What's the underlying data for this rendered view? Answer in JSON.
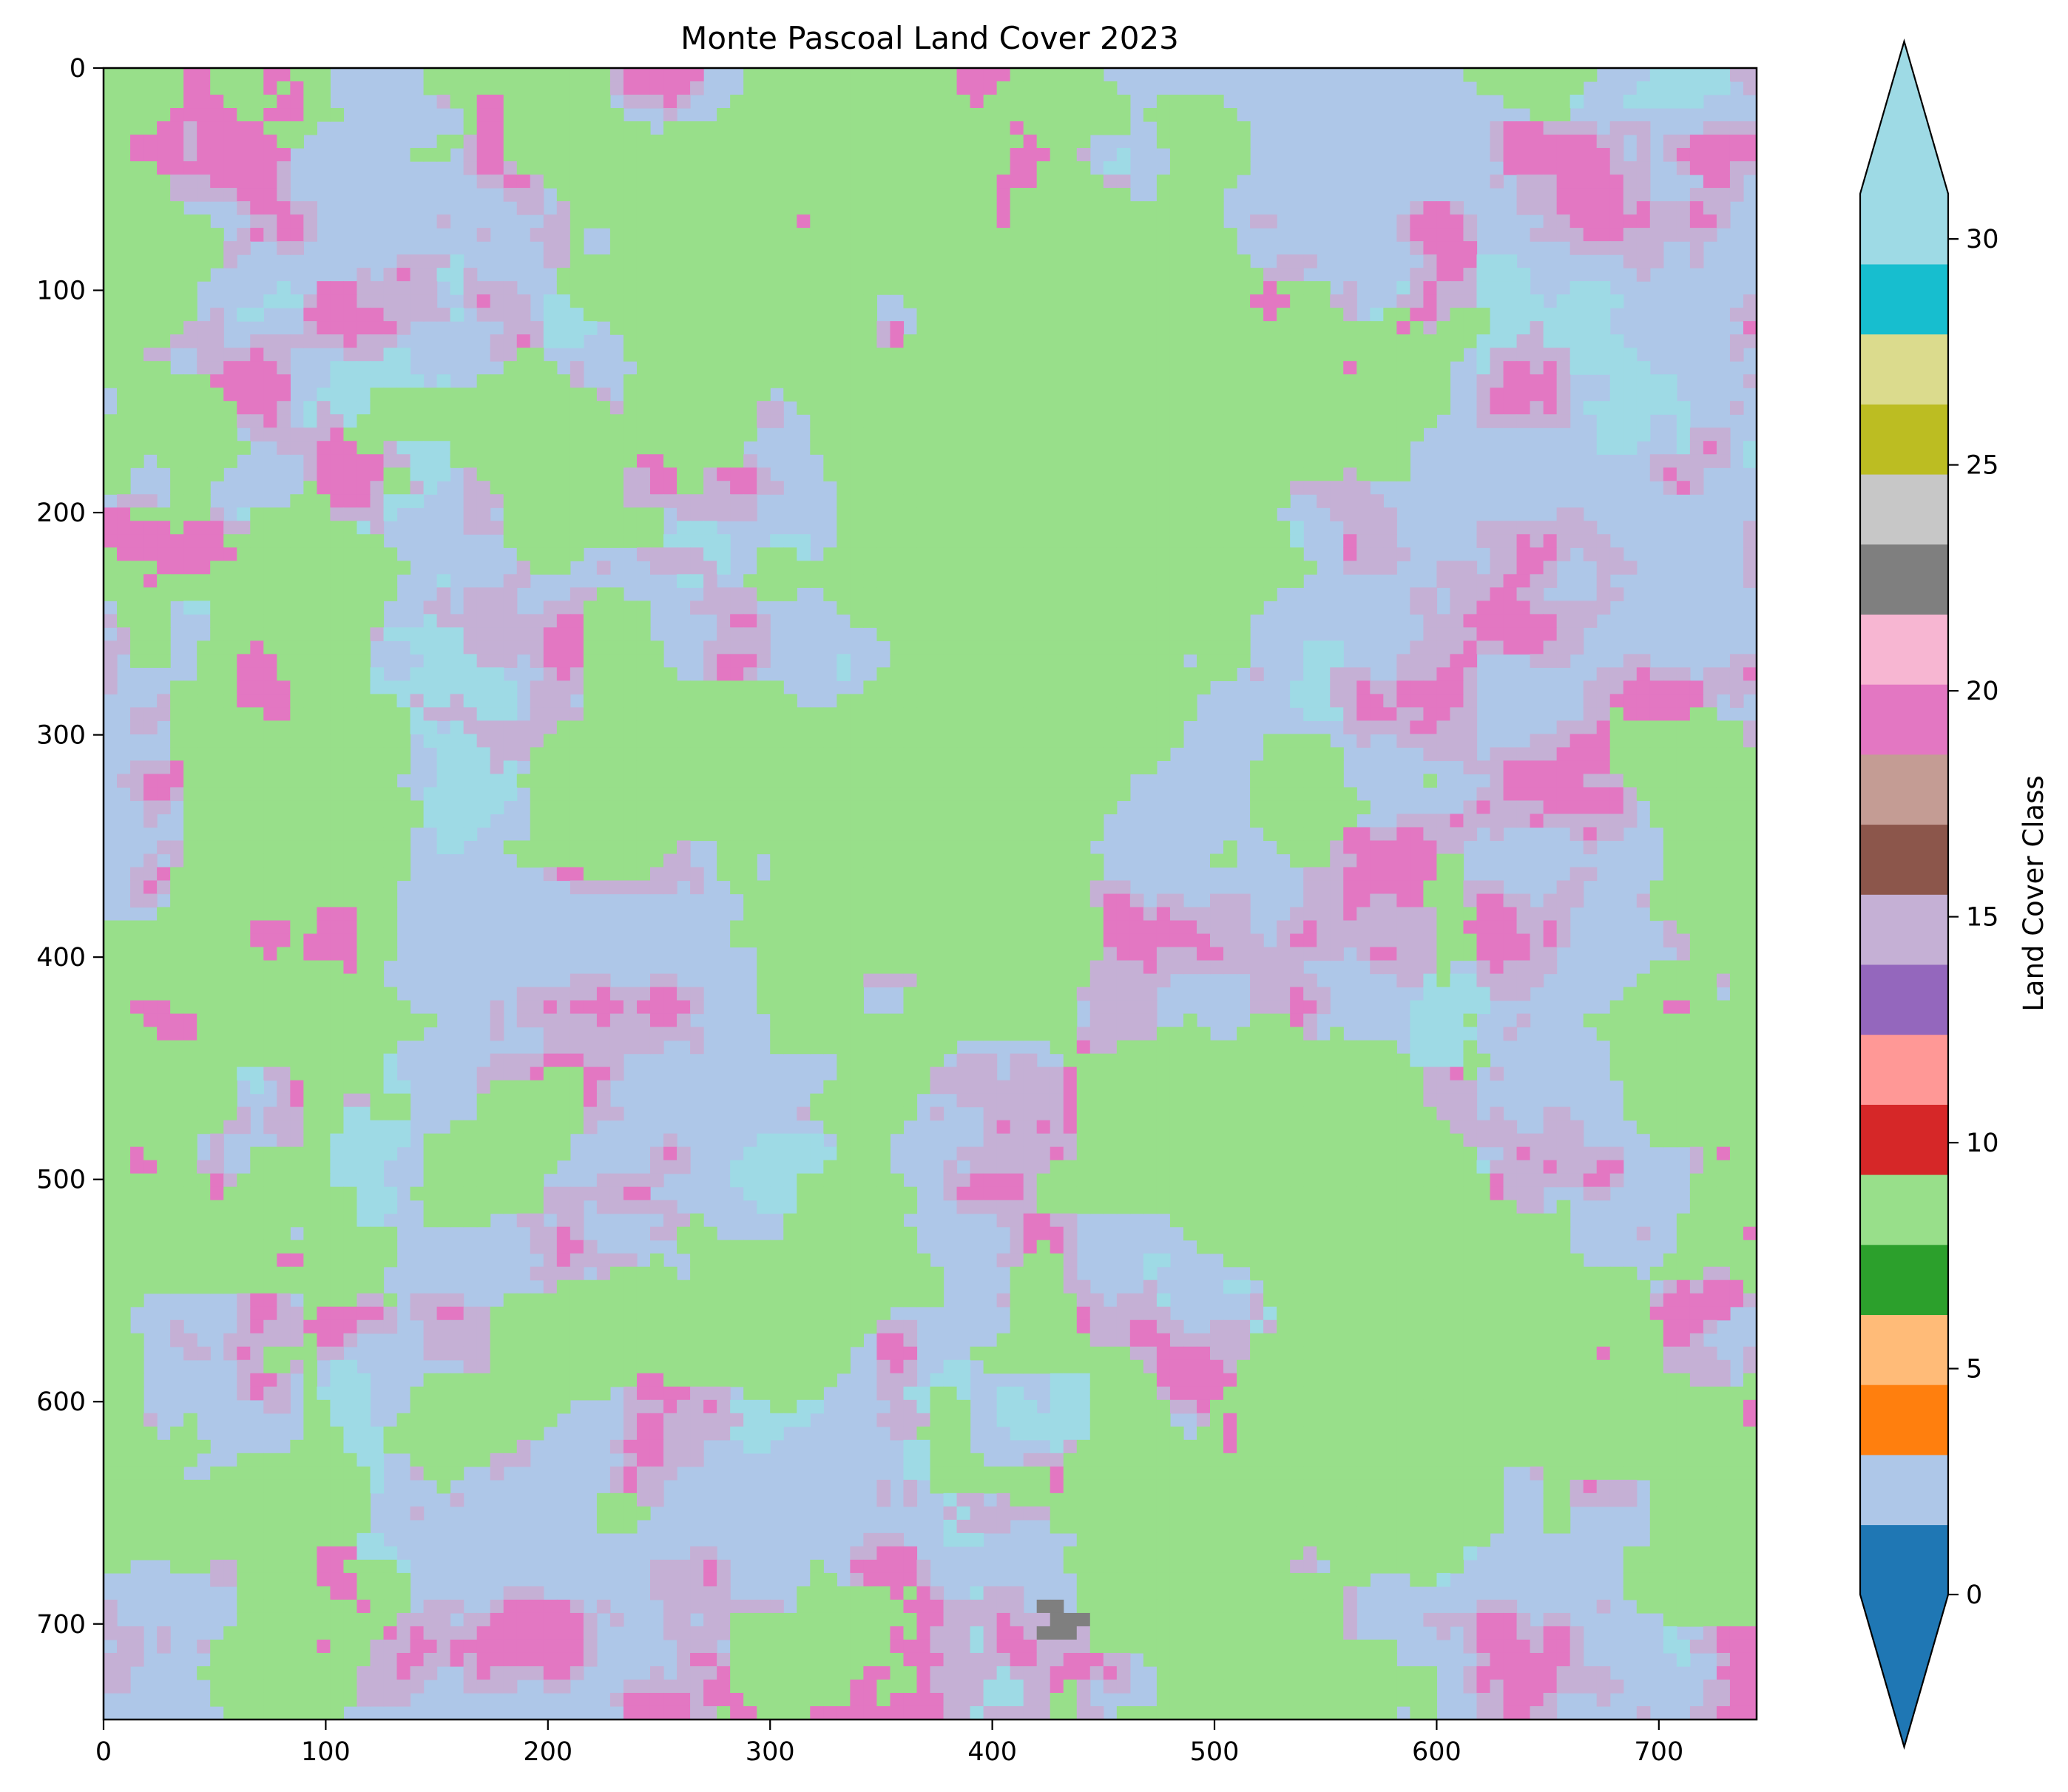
{
  "chart_data": {
    "type": "heatmap",
    "title": "Monte Pascoal Land Cover 2023",
    "xlabel": "",
    "ylabel": "",
    "xlim": [
      0,
      744
    ],
    "ylim": [
      743,
      0
    ],
    "x_ticks": [
      0,
      100,
      200,
      300,
      400,
      500,
      600,
      700
    ],
    "y_ticks": [
      0,
      100,
      200,
      300,
      400,
      500,
      600,
      700
    ],
    "grid": false,
    "colorbar": {
      "label": "Land Cover Class",
      "range": [
        0,
        31
      ],
      "extend": "both",
      "ticks": [
        0,
        5,
        10,
        15,
        20,
        25,
        30
      ],
      "cmap": "tab20",
      "colors": [
        "#1f77b4",
        "#aec7e8",
        "#ff7f0e",
        "#ffbb78",
        "#2ca02c",
        "#98df8a",
        "#d62728",
        "#ff9896",
        "#9467bd",
        "#c5b0d5",
        "#8c564b",
        "#c49c94",
        "#e377c2",
        "#f7b6d2",
        "#7f7f7f",
        "#c7c7c7",
        "#bcbd22",
        "#dbdb8d",
        "#17becf",
        "#9edae5"
      ],
      "under_color": "#1f77b4",
      "over_color": "#9edae5"
    },
    "dominant_classes": [
      {
        "class": 9,
        "color": "#98df8a"
      },
      {
        "class": 3,
        "color": "#aec7e8"
      },
      {
        "class": 21,
        "color": "#e377c2"
      },
      {
        "class": 15,
        "color": "#c5b0d5"
      },
      {
        "class": 31,
        "color": "#9edae5"
      },
      {
        "class": 24,
        "color": "#7f7f7f"
      }
    ]
  }
}
